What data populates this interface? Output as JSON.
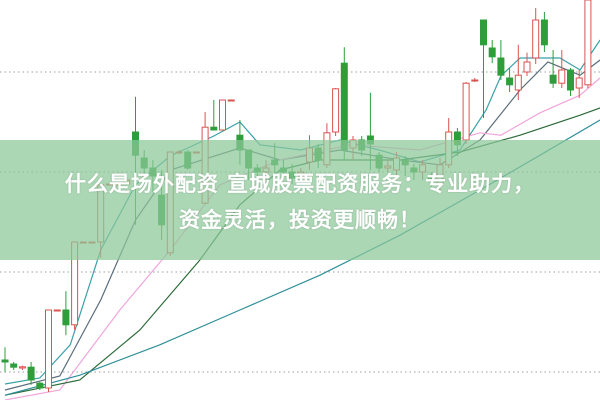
{
  "banner": {
    "line1": "什么是场外配资 宣城股票配资服务：专业助力，",
    "line2": "资金灵活，投资更顺畅！"
  },
  "colors": {
    "up": "#d9534f",
    "down": "#2e9e3a",
    "grid": "#9aa0a6",
    "banner": "#8cc898"
  },
  "chart_data": {
    "type": "candlestick",
    "title": "",
    "xlabel": "",
    "ylabel": "",
    "grid": true,
    "gridlines": [
      82,
      57,
      32,
      7
    ],
    "ylim": [
      0,
      100
    ],
    "candles_ohlc": [
      [
        10,
        13.2,
        7,
        9.5
      ],
      [
        9,
        9.5,
        7.5,
        8.2
      ],
      [
        8,
        8.6,
        7.5,
        8.3
      ],
      [
        8.2,
        9.5,
        3.8,
        5
      ],
      [
        4.2,
        4.5,
        2.5,
        3
      ],
      [
        3,
        22.5,
        2,
        22.5
      ],
      [
        22.5,
        22.5,
        22.5,
        22.5
      ],
      [
        22.5,
        27.2,
        16.2,
        18.8
      ],
      [
        18.8,
        39.5,
        17.5,
        39.5
      ],
      [
        39.5,
        39.5,
        39.5,
        39.5
      ],
      [
        39.5,
        39.5,
        39.5,
        39.5
      ],
      [
        39.5,
        53.8,
        35.5,
        53.8
      ],
      [
        53.8,
        54,
        53.8,
        54
      ],
      [
        54,
        54,
        54,
        54
      ],
      [
        54,
        55,
        54,
        55
      ],
      [
        67,
        75.8,
        43.8,
        61.2
      ],
      [
        60.5,
        62.5,
        55,
        58
      ],
      [
        58,
        60,
        52,
        56
      ],
      [
        51.2,
        57.5,
        40,
        43.8
      ],
      [
        36.8,
        62,
        36,
        62
      ],
      [
        62,
        62.5,
        61.5,
        62
      ],
      [
        62,
        62.5,
        57.5,
        58
      ],
      [
        62,
        62,
        62,
        62
      ],
      [
        49.2,
        72,
        49,
        68.2
      ],
      [
        68.2,
        75,
        67.5,
        67.5
      ],
      [
        67.5,
        75,
        67.5,
        75
      ],
      [
        75,
        75,
        75,
        75
      ],
      [
        66.2,
        70,
        58.8,
        62.5
      ],
      [
        62.5,
        62.5,
        55,
        58
      ],
      [
        58,
        59,
        56,
        57
      ],
      [
        57,
        60,
        55,
        58
      ],
      [
        60,
        64.2,
        55,
        58.8
      ],
      [
        58,
        60,
        56,
        57
      ],
      [
        57,
        59,
        54,
        55.5
      ],
      [
        56,
        58,
        54,
        57
      ],
      [
        59.5,
        66.2,
        57.5,
        63
      ],
      [
        63,
        64,
        58,
        60
      ],
      [
        58.8,
        69.2,
        58,
        66.8
      ],
      [
        67,
        78,
        66,
        77.8
      ],
      [
        84.2,
        88.2,
        60,
        62.5
      ],
      [
        63,
        66,
        60,
        65
      ],
      [
        65,
        66,
        61,
        62.5
      ],
      [
        66,
        76.8,
        57.5,
        64
      ],
      [
        61.2,
        62,
        57,
        58
      ],
      [
        58,
        60,
        57,
        58.5
      ],
      [
        57.5,
        62,
        55,
        60.5
      ],
      [
        60,
        61,
        56,
        58.8
      ],
      [
        58,
        59,
        55,
        57
      ],
      [
        57,
        60,
        55,
        58.8
      ],
      [
        56,
        57,
        53,
        55
      ],
      [
        53.8,
        60.5,
        52.5,
        58.8
      ],
      [
        58.8,
        70.5,
        58,
        67
      ],
      [
        67,
        68,
        61,
        63.8
      ],
      [
        65,
        79.5,
        64,
        79.2
      ],
      [
        80,
        80.5,
        79.5,
        80
      ],
      [
        95,
        95,
        70.5,
        88.8
      ],
      [
        88,
        90,
        84.2,
        85.8
      ],
      [
        85.5,
        90,
        80,
        81.2
      ],
      [
        80.5,
        83,
        77,
        78.8
      ],
      [
        77.5,
        88.8,
        75,
        81.2
      ],
      [
        82,
        86.8,
        81,
        84.5
      ],
      [
        85.5,
        98,
        84,
        95
      ],
      [
        95,
        97,
        87,
        88.8
      ],
      [
        81.2,
        87.5,
        78,
        79.2
      ],
      [
        79.2,
        87.5,
        78,
        82.5
      ],
      [
        82.5,
        83,
        76,
        77.5
      ],
      [
        78,
        82.5,
        75.5,
        80.5
      ],
      [
        78.8,
        100,
        78,
        100
      ]
    ],
    "moving_averages": [
      {
        "color": "#3aa0a8",
        "points": [
          [
            0,
            4
          ],
          [
            4,
            5.5
          ],
          [
            7.5,
            13.8
          ],
          [
            11,
            37.5
          ],
          [
            15,
            53.8
          ],
          [
            19,
            61
          ],
          [
            24,
            66
          ],
          [
            27,
            69.5
          ],
          [
            29.3,
            63.8
          ],
          [
            34,
            62.5
          ],
          [
            38.5,
            65
          ],
          [
            43,
            62.5
          ],
          [
            47.7,
            59.5
          ],
          [
            52.3,
            62.5
          ],
          [
            55.3,
            72.5
          ],
          [
            57,
            81
          ],
          [
            59.2,
            85.5
          ],
          [
            63.8,
            85.5
          ],
          [
            66.1,
            82.5
          ],
          [
            68.4,
            90
          ]
        ]
      },
      {
        "color": "#5a6c7a",
        "points": [
          [
            0,
            2.5
          ],
          [
            6.3,
            6
          ],
          [
            11,
            25
          ],
          [
            15,
            45
          ],
          [
            19,
            57.5
          ],
          [
            27,
            63
          ],
          [
            31.6,
            60
          ],
          [
            38.5,
            62.5
          ],
          [
            45.4,
            60
          ],
          [
            50,
            58.8
          ],
          [
            54.6,
            65
          ],
          [
            59.2,
            77.5
          ],
          [
            62.4,
            84.5
          ],
          [
            66.1,
            81.2
          ],
          [
            68.4,
            85
          ]
        ]
      },
      {
        "color": "#f0a6dc",
        "points": [
          [
            0,
            0
          ],
          [
            6.3,
            2.5
          ],
          [
            13.2,
            22.5
          ],
          [
            19,
            37.5
          ],
          [
            24.7,
            53.8
          ],
          [
            31.6,
            60
          ],
          [
            39.7,
            63.8
          ],
          [
            47.7,
            62.5
          ],
          [
            54.6,
            66.8
          ],
          [
            57,
            66.2
          ],
          [
            61.5,
            71.8
          ],
          [
            66.1,
            76.2
          ],
          [
            68.4,
            80.5
          ]
        ]
      },
      {
        "color": "#2d6b3a",
        "points": [
          [
            0,
            1.2
          ],
          [
            8.6,
            5
          ],
          [
            15.5,
            17.5
          ],
          [
            22.4,
            35
          ],
          [
            27,
            48.8
          ],
          [
            31.6,
            57.5
          ],
          [
            36.2,
            60
          ],
          [
            45.4,
            60
          ],
          [
            52.3,
            62
          ],
          [
            59.2,
            66.2
          ],
          [
            66.1,
            71.2
          ],
          [
            68.4,
            73
          ]
        ]
      },
      {
        "color": "#2f8f9a",
        "points": [
          [
            0,
            1.2
          ],
          [
            8.6,
            6.2
          ],
          [
            17.8,
            13.8
          ],
          [
            27,
            22.5
          ],
          [
            36.2,
            31.2
          ],
          [
            45.4,
            41.2
          ],
          [
            54.6,
            52.5
          ],
          [
            61.5,
            61.2
          ],
          [
            68.4,
            70
          ]
        ]
      }
    ]
  }
}
